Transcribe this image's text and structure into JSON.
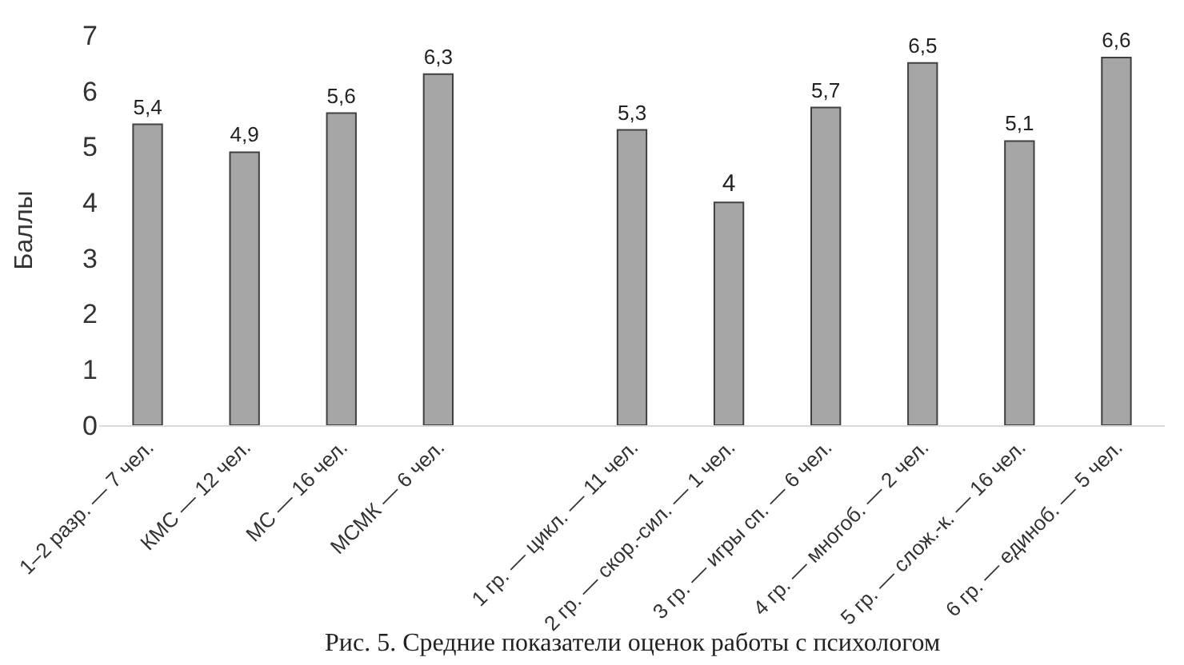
{
  "chart_data": {
    "type": "bar",
    "ylabel": "Баллы",
    "categories": [
      "1–2 разр. — 7 чел.",
      "КМС — 12 чел.",
      "МС — 16 чел.",
      "МСМК — 6 чел.",
      null,
      "1 гр. — цикл. — 11 чел.",
      "2 гр. — скор.-сил. — 1 чел.",
      "3 гр. — игры сп. — 6 чел.",
      "4 гр. — многоб. — 2 чел.",
      "5 гр. — слож.-к. — 16 чел.",
      "6 гр. — единоб. — 5 чел."
    ],
    "values": [
      5.4,
      4.9,
      5.6,
      6.3,
      null,
      5.3,
      4,
      5.7,
      6.5,
      5.1,
      6.6
    ],
    "value_labels": [
      "5,4",
      "4,9",
      "5,6",
      "6,3",
      null,
      "5,3",
      "4",
      "5,7",
      "6,5",
      "5,1",
      "6,6"
    ],
    "color": "#a6a6a6",
    "ylim": [
      0,
      7
    ],
    "yticks": [
      0,
      1,
      2,
      3,
      4,
      5,
      6,
      7
    ],
    "grid": false,
    "legend": false,
    "annotations": [
      "Рис. 5. Средние показатели оценок работы с психологом"
    ]
  }
}
